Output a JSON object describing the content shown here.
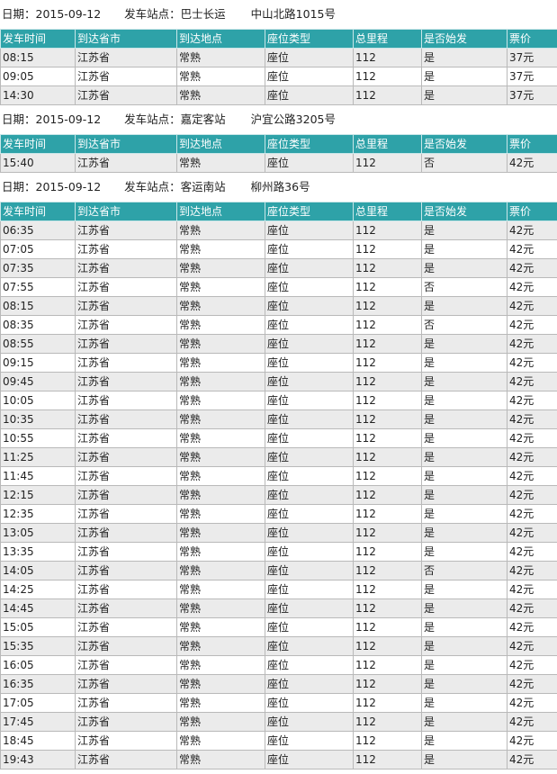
{
  "headers": [
    "发车时间",
    "到达省市",
    "到达地点",
    "座位类型",
    "总里程",
    "是否始发",
    "票价"
  ],
  "sections": [
    {
      "date_text": "日期：2015-09-12",
      "station_text": "发车站点：巴士长运",
      "address": "中山北路1015号",
      "rows": [
        [
          "08:15",
          "江苏省",
          "常熟",
          "座位",
          "112",
          "是",
          "37元"
        ],
        [
          "09:05",
          "江苏省",
          "常熟",
          "座位",
          "112",
          "是",
          "37元"
        ],
        [
          "14:30",
          "江苏省",
          "常熟",
          "座位",
          "112",
          "是",
          "37元"
        ]
      ]
    },
    {
      "date_text": "日期：2015-09-12",
      "station_text": "发车站点：嘉定客站",
      "address": "沪宜公路3205号",
      "rows": [
        [
          "15:40",
          "江苏省",
          "常熟",
          "座位",
          "112",
          "否",
          "42元"
        ]
      ]
    },
    {
      "date_text": "日期：2015-09-12",
      "station_text": "发车站点：客运南站",
      "address": "柳州路36号",
      "rows": [
        [
          "06:35",
          "江苏省",
          "常熟",
          "座位",
          "112",
          "是",
          "42元"
        ],
        [
          "07:05",
          "江苏省",
          "常熟",
          "座位",
          "112",
          "是",
          "42元"
        ],
        [
          "07:35",
          "江苏省",
          "常熟",
          "座位",
          "112",
          "是",
          "42元"
        ],
        [
          "07:55",
          "江苏省",
          "常熟",
          "座位",
          "112",
          "否",
          "42元"
        ],
        [
          "08:15",
          "江苏省",
          "常熟",
          "座位",
          "112",
          "是",
          "42元"
        ],
        [
          "08:35",
          "江苏省",
          "常熟",
          "座位",
          "112",
          "否",
          "42元"
        ],
        [
          "08:55",
          "江苏省",
          "常熟",
          "座位",
          "112",
          "是",
          "42元"
        ],
        [
          "09:15",
          "江苏省",
          "常熟",
          "座位",
          "112",
          "是",
          "42元"
        ],
        [
          "09:45",
          "江苏省",
          "常熟",
          "座位",
          "112",
          "是",
          "42元"
        ],
        [
          "10:05",
          "江苏省",
          "常熟",
          "座位",
          "112",
          "是",
          "42元"
        ],
        [
          "10:35",
          "江苏省",
          "常熟",
          "座位",
          "112",
          "是",
          "42元"
        ],
        [
          "10:55",
          "江苏省",
          "常熟",
          "座位",
          "112",
          "是",
          "42元"
        ],
        [
          "11:25",
          "江苏省",
          "常熟",
          "座位",
          "112",
          "是",
          "42元"
        ],
        [
          "11:45",
          "江苏省",
          "常熟",
          "座位",
          "112",
          "是",
          "42元"
        ],
        [
          "12:15",
          "江苏省",
          "常熟",
          "座位",
          "112",
          "是",
          "42元"
        ],
        [
          "12:35",
          "江苏省",
          "常熟",
          "座位",
          "112",
          "是",
          "42元"
        ],
        [
          "13:05",
          "江苏省",
          "常熟",
          "座位",
          "112",
          "是",
          "42元"
        ],
        [
          "13:35",
          "江苏省",
          "常熟",
          "座位",
          "112",
          "是",
          "42元"
        ],
        [
          "14:05",
          "江苏省",
          "常熟",
          "座位",
          "112",
          "否",
          "42元"
        ],
        [
          "14:25",
          "江苏省",
          "常熟",
          "座位",
          "112",
          "是",
          "42元"
        ],
        [
          "14:45",
          "江苏省",
          "常熟",
          "座位",
          "112",
          "是",
          "42元"
        ],
        [
          "15:05",
          "江苏省",
          "常熟",
          "座位",
          "112",
          "是",
          "42元"
        ],
        [
          "15:35",
          "江苏省",
          "常熟",
          "座位",
          "112",
          "是",
          "42元"
        ],
        [
          "16:05",
          "江苏省",
          "常熟",
          "座位",
          "112",
          "是",
          "42元"
        ],
        [
          "16:35",
          "江苏省",
          "常熟",
          "座位",
          "112",
          "是",
          "42元"
        ],
        [
          "17:05",
          "江苏省",
          "常熟",
          "座位",
          "112",
          "是",
          "42元"
        ],
        [
          "17:45",
          "江苏省",
          "常熟",
          "座位",
          "112",
          "是",
          "42元"
        ],
        [
          "18:45",
          "江苏省",
          "常熟",
          "座位",
          "112",
          "是",
          "42元"
        ],
        [
          "19:43",
          "江苏省",
          "常熟",
          "座位",
          "112",
          "是",
          "42元"
        ]
      ]
    }
  ]
}
